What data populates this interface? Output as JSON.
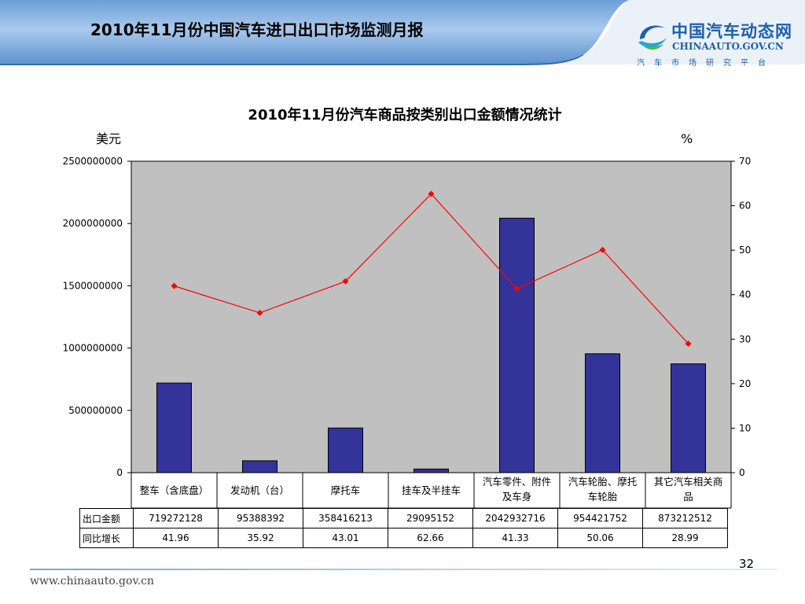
{
  "header": {
    "title": "2010年11月份中国汽车进口出口市场监测月报",
    "logo_cn": "中国汽车动态网",
    "logo_en": "CHINAAUTO.GOV.CN",
    "logo_sub": "汽车市场研究平台"
  },
  "chart_data": {
    "type": "bar",
    "title": "2010年11月份汽车商品按类别出口金额情况统计",
    "ylabel_left": "美元",
    "ylabel_right": "%",
    "categories": [
      "整车（含底盘）",
      "发动机（台）",
      "摩托车",
      "挂车及半挂车",
      "汽车零件、附件及车身",
      "汽车轮胎、摩托车轮胎",
      "其它汽车相关商品"
    ],
    "category_lines": [
      [
        "整车（含底盘）"
      ],
      [
        "发动机（台）"
      ],
      [
        "摩托车"
      ],
      [
        "挂车及半挂车"
      ],
      [
        "汽车零件、附件",
        "及车身"
      ],
      [
        "汽车轮胎、摩托",
        "车轮胎"
      ],
      [
        "其它汽车相关商",
        "品"
      ]
    ],
    "series": [
      {
        "name": "出口金额",
        "type": "bar",
        "axis": "left",
        "color": "#333399",
        "values": [
          719272128,
          95388392,
          358416213,
          29095152,
          2042932716,
          954421752,
          873212512
        ]
      },
      {
        "name": "同比增长",
        "type": "line",
        "axis": "right",
        "color": "#ff0000",
        "values": [
          41.96,
          35.92,
          43.01,
          62.66,
          41.33,
          50.06,
          28.99
        ]
      }
    ],
    "ylim_left": [
      0,
      2500000000
    ],
    "yticks_left": [
      0,
      500000000,
      1000000000,
      1500000000,
      2000000000,
      2500000000
    ],
    "ylim_right": [
      0,
      70
    ],
    "yticks_right": [
      0,
      10,
      20,
      30,
      40,
      50,
      60,
      70
    ],
    "grid": false,
    "plot_background": "#c0c0c0",
    "table_rows": [
      {
        "label": "出口金额",
        "values": [
          "719272128",
          "95388392",
          "358416213",
          "29095152",
          "2042932716",
          "954421752",
          "873212512"
        ]
      },
      {
        "label": "同比增长",
        "values": [
          "41.96",
          "35.92",
          "43.01",
          "62.66",
          "41.33",
          "50.06",
          "28.99"
        ]
      }
    ]
  },
  "footer": {
    "url": "www.chinaauto.gov.cn",
    "page_number": "32"
  },
  "colors": {
    "header_blue": "#2f6db3",
    "brand_blue": "#1d5fae"
  }
}
